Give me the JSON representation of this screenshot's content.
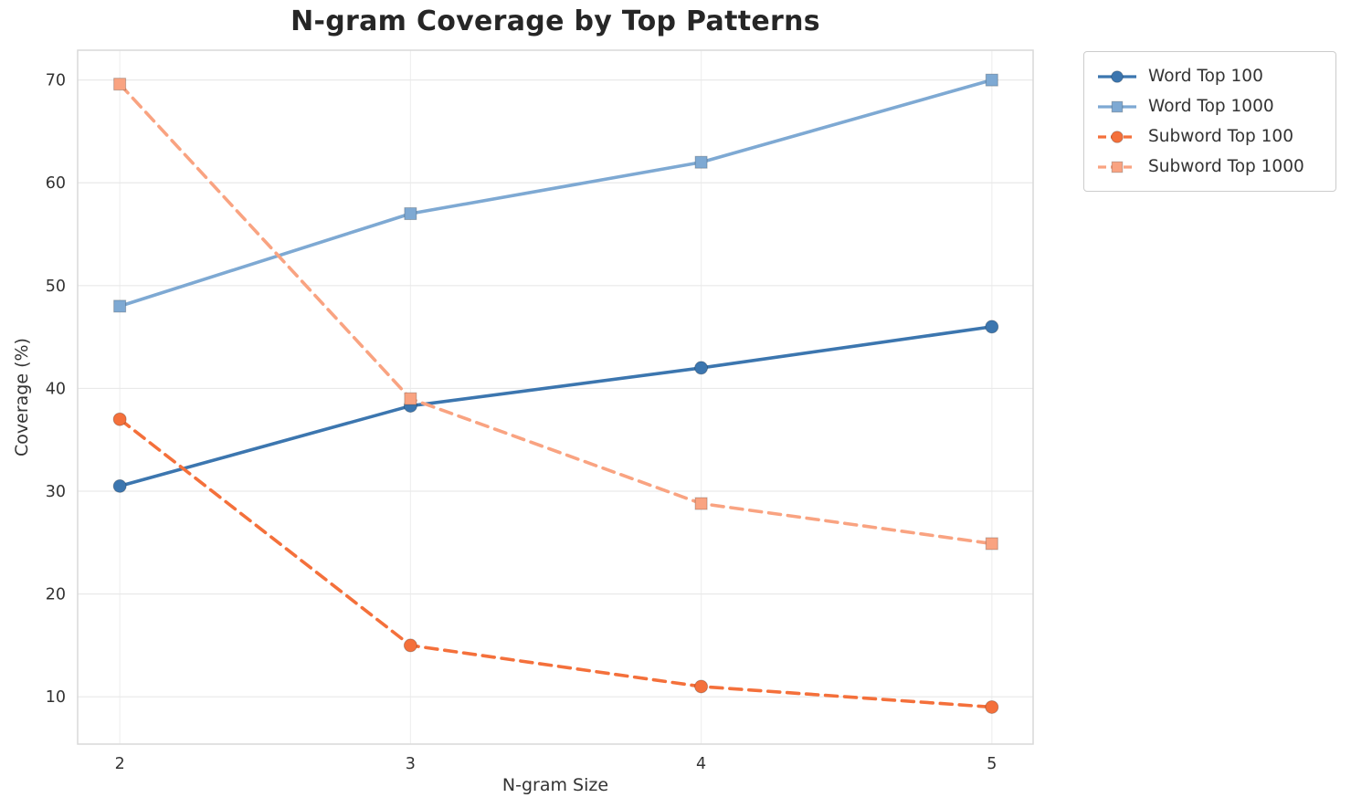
{
  "chart_data": {
    "type": "line",
    "title": "N-gram Coverage by Top Patterns",
    "xlabel": "N-gram Size",
    "ylabel": "Coverage (%)",
    "x": [
      2,
      3,
      4,
      5
    ],
    "xticks": [
      2,
      3,
      4,
      5
    ],
    "yticks": [
      10,
      20,
      30,
      40,
      50,
      60,
      70
    ],
    "xlim": [
      1.855,
      5.142
    ],
    "ylim": [
      5.4,
      72.9
    ],
    "grid": true,
    "legend_position": "outside upper right",
    "colors": {
      "word_top_100": "#3c76af",
      "word_top_1000": "#7ea9d3",
      "subword_top_100": "#f4703b",
      "subword_top_1000": "#f9a381",
      "grid_line": "#e9e9e9",
      "plot_border": "#d9d9d9",
      "text": "#333333"
    },
    "series": [
      {
        "name": "Word Top 100",
        "values": [
          30.5,
          38.3,
          42.0,
          46.0
        ],
        "color": "#3c76af",
        "line_style": "solid",
        "marker": "circle"
      },
      {
        "name": "Word Top 1000",
        "values": [
          48.0,
          57.0,
          62.0,
          70.0
        ],
        "color": "#7ea9d3",
        "line_style": "solid",
        "marker": "square"
      },
      {
        "name": "Subword Top 100",
        "values": [
          37.0,
          15.0,
          11.0,
          9.0
        ],
        "color": "#f4703b",
        "line_style": "dashed",
        "marker": "circle"
      },
      {
        "name": "Subword Top 1000",
        "values": [
          69.6,
          39.0,
          28.8,
          24.9
        ],
        "color": "#f9a381",
        "line_style": "dashed",
        "marker": "square"
      }
    ]
  }
}
